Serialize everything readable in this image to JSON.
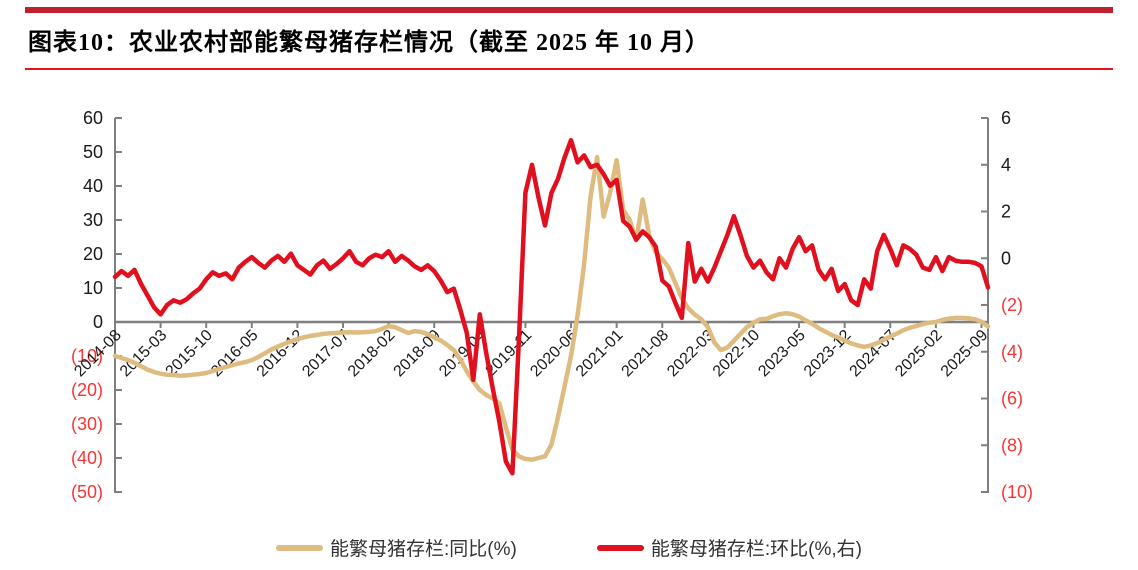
{
  "figure": {
    "title": "图表10：农业农村部能繁母猪存栏情况（截至 2025 年 10 月）"
  },
  "colors": {
    "accent_bar": "#C1202F",
    "divider": "#E8111C",
    "axis": "#7F7F7F",
    "tick_label": "#1A1A1A",
    "negative_tick_label": "#F83535",
    "series_yoy": "#DEBB7F",
    "series_mom": "#E0101E",
    "legend_text": "#333333"
  },
  "chart_data": {
    "type": "line",
    "title": "农业农村部能繁母猪存栏情况",
    "grid": false,
    "legend_position": "bottom",
    "left_axis": {
      "min": -50,
      "max": 60,
      "ticks": [
        60,
        50,
        40,
        30,
        20,
        10,
        0,
        -10,
        -20,
        -30,
        -40,
        -50
      ]
    },
    "right_axis": {
      "min": -10,
      "max": 6,
      "ticks": [
        6,
        4,
        2,
        0,
        -2,
        -4,
        -6,
        -8,
        -10
      ]
    },
    "x_tick_month_indices": [
      0,
      7,
      14,
      21,
      28,
      35,
      42,
      49,
      56,
      63,
      70,
      77,
      84,
      91,
      98,
      105,
      112,
      119,
      126,
      133
    ],
    "x_tick_labels": [
      "2014-08",
      "2015-03",
      "2015-10",
      "2016-05",
      "2016-12",
      "2017-07",
      "2018-02",
      "2018-09",
      "2019-04",
      "2019-11",
      "2020-06",
      "2021-01",
      "2021-08",
      "2022-03",
      "2022-10",
      "2023-05",
      "2023-12",
      "2024-07",
      "2025-02",
      "2025-09"
    ],
    "x_months": [
      "2014-08",
      "2014-09",
      "2014-10",
      "2014-11",
      "2014-12",
      "2015-01",
      "2015-02",
      "2015-03",
      "2015-04",
      "2015-05",
      "2015-06",
      "2015-07",
      "2015-08",
      "2015-09",
      "2015-10",
      "2015-11",
      "2015-12",
      "2016-01",
      "2016-02",
      "2016-03",
      "2016-04",
      "2016-05",
      "2016-06",
      "2016-07",
      "2016-08",
      "2016-09",
      "2016-10",
      "2016-11",
      "2016-12",
      "2017-01",
      "2017-02",
      "2017-03",
      "2017-04",
      "2017-05",
      "2017-06",
      "2017-07",
      "2017-08",
      "2017-09",
      "2017-10",
      "2017-11",
      "2017-12",
      "2018-01",
      "2018-02",
      "2018-03",
      "2018-04",
      "2018-05",
      "2018-06",
      "2018-07",
      "2018-08",
      "2018-09",
      "2018-10",
      "2018-11",
      "2018-12",
      "2019-01",
      "2019-02",
      "2019-03",
      "2019-04",
      "2019-05",
      "2019-06",
      "2019-07",
      "2019-08",
      "2019-09",
      "2019-10",
      "2019-11",
      "2019-12",
      "2020-01",
      "2020-02",
      "2020-03",
      "2020-04",
      "2020-05",
      "2020-06",
      "2020-07",
      "2020-08",
      "2020-09",
      "2020-10",
      "2020-11",
      "2020-12",
      "2021-01",
      "2021-02",
      "2021-03",
      "2021-04",
      "2021-05",
      "2021-06",
      "2021-07",
      "2021-08",
      "2021-09",
      "2021-10",
      "2021-11",
      "2021-12",
      "2022-01",
      "2022-02",
      "2022-03",
      "2022-04",
      "2022-05",
      "2022-06",
      "2022-07",
      "2022-08",
      "2022-09",
      "2022-10",
      "2022-11",
      "2022-12",
      "2023-01",
      "2023-02",
      "2023-03",
      "2023-04",
      "2023-05",
      "2023-06",
      "2023-07",
      "2023-08",
      "2023-09",
      "2023-10",
      "2023-11",
      "2023-12",
      "2024-01",
      "2024-02",
      "2024-03",
      "2024-04",
      "2024-05",
      "2024-06",
      "2024-07",
      "2024-08",
      "2024-09",
      "2024-10",
      "2024-11",
      "2024-12",
      "2025-01",
      "2025-02",
      "2025-03",
      "2025-04",
      "2025-05",
      "2025-06",
      "2025-07",
      "2025-08",
      "2025-09",
      "2025-10"
    ],
    "series": [
      {
        "name": "能繁母猪存栏:同比(%)",
        "axis": "left",
        "color": "#DEBB7F",
        "values": [
          -10.0,
          -10.6,
          -11.2,
          -12.0,
          -13.0,
          -14.0,
          -14.7,
          -15.2,
          -15.5,
          -15.6,
          -15.8,
          -15.7,
          -15.5,
          -15.3,
          -15.0,
          -14.4,
          -13.8,
          -13.2,
          -12.7,
          -12.2,
          -11.8,
          -11.2,
          -10.3,
          -9.2,
          -8.1,
          -7.2,
          -6.4,
          -5.7,
          -5.0,
          -4.5,
          -4.1,
          -3.8,
          -3.5,
          -3.3,
          -3.2,
          -3.1,
          -3.0,
          -3.1,
          -3.0,
          -2.9,
          -2.7,
          -2.0,
          -1.2,
          -1.5,
          -2.4,
          -3.2,
          -2.7,
          -2.9,
          -3.6,
          -4.5,
          -5.4,
          -6.8,
          -8.3,
          -11.0,
          -14.5,
          -17.5,
          -20.0,
          -21.5,
          -22.5,
          -24.0,
          -31.0,
          -37.5,
          -39.5,
          -40.3,
          -40.5,
          -40.0,
          -39.5,
          -36.0,
          -28.0,
          -19.0,
          -10.0,
          2.0,
          17.0,
          37.0,
          48.5,
          31.0,
          38.0,
          47.6,
          33.0,
          30.0,
          24.0,
          36.0,
          25.5,
          20.5,
          18.5,
          16.0,
          11.5,
          7.0,
          4.0,
          2.2,
          0.8,
          -1.5,
          -6.0,
          -8.3,
          -7.5,
          -5.5,
          -3.5,
          -1.5,
          -0.2,
          0.8,
          0.9,
          1.7,
          2.3,
          2.6,
          2.3,
          1.6,
          0.5,
          -0.5,
          -1.8,
          -2.8,
          -3.8,
          -4.6,
          -5.4,
          -6.3,
          -6.9,
          -7.3,
          -6.9,
          -6.2,
          -5.2,
          -4.3,
          -3.4,
          -2.4,
          -1.7,
          -1.2,
          -0.6,
          -0.2,
          0.0,
          0.6,
          1.0,
          1.2,
          1.2,
          1.1,
          0.8,
          0.1,
          -1.3
        ]
      },
      {
        "name": "能繁母猪存栏:环比(%,右)",
        "axis": "right",
        "color": "#E0101E",
        "values": [
          -0.8,
          -0.55,
          -0.75,
          -0.5,
          -1.1,
          -1.6,
          -2.1,
          -2.4,
          -2.0,
          -1.8,
          -1.9,
          -1.75,
          -1.5,
          -1.3,
          -0.9,
          -0.6,
          -0.75,
          -0.65,
          -0.9,
          -0.4,
          -0.15,
          0.05,
          -0.2,
          -0.4,
          -0.1,
          0.1,
          -0.15,
          0.2,
          -0.3,
          -0.5,
          -0.7,
          -0.3,
          -0.1,
          -0.45,
          -0.25,
          0.0,
          0.3,
          -0.15,
          -0.3,
          0.0,
          0.15,
          0.05,
          0.3,
          -0.15,
          0.1,
          -0.1,
          -0.35,
          -0.5,
          -0.3,
          -0.55,
          -0.95,
          -1.45,
          -1.3,
          -2.2,
          -3.2,
          -5.2,
          -2.4,
          -4.1,
          -5.6,
          -7.0,
          -8.7,
          -9.2,
          -3.5,
          2.8,
          4.0,
          2.6,
          1.4,
          2.8,
          3.4,
          4.3,
          5.05,
          4.1,
          4.4,
          3.9,
          4.0,
          3.6,
          3.1,
          3.35,
          1.6,
          1.35,
          0.8,
          1.15,
          0.9,
          0.5,
          -0.95,
          -1.2,
          -1.9,
          -2.55,
          0.65,
          -1.0,
          -0.45,
          -1.0,
          -0.4,
          0.3,
          1.0,
          1.8,
          1.0,
          0.1,
          -0.4,
          -0.1,
          -0.6,
          -0.9,
          0.0,
          -0.4,
          0.4,
          0.9,
          0.3,
          0.55,
          -0.5,
          -0.9,
          -0.45,
          -1.4,
          -1.1,
          -1.8,
          -2.0,
          -0.9,
          -1.3,
          0.3,
          1.0,
          0.4,
          -0.3,
          0.55,
          0.4,
          0.15,
          -0.4,
          -0.5,
          0.05,
          -0.55,
          0.05,
          -0.1,
          -0.15,
          -0.15,
          -0.2,
          -0.35,
          -1.25
        ]
      }
    ]
  }
}
